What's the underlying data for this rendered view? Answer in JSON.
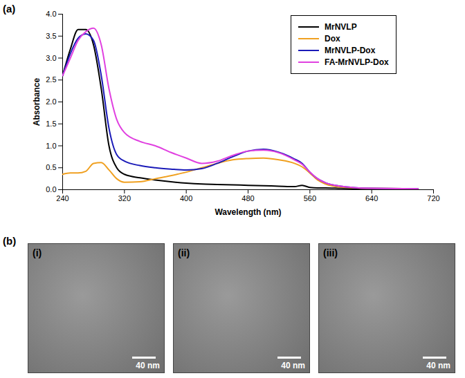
{
  "chart_data": {
    "type": "line",
    "annotations": [
      "(a)"
    ],
    "x_label": "Wavelength (nm)",
    "y_label": "Absorbance",
    "x": [
      240,
      250,
      260,
      270,
      280,
      290,
      300,
      310,
      320,
      340,
      360,
      380,
      400,
      420,
      440,
      460,
      480,
      500,
      520,
      540,
      550,
      560,
      570,
      580,
      600,
      640,
      700
    ],
    "series": [
      {
        "name": "MrNVLP",
        "color": "#000000",
        "values": [
          2.6,
          3.2,
          3.65,
          3.65,
          3.3,
          2.3,
          1.0,
          0.5,
          0.35,
          0.27,
          0.22,
          0.18,
          0.15,
          0.13,
          0.12,
          0.11,
          0.1,
          0.09,
          0.08,
          0.07,
          0.1,
          0.05,
          0.04,
          0.04,
          0.03,
          0.02,
          0.02
        ]
      },
      {
        "name": "Dox",
        "color": "#f0a020",
        "values": [
          0.35,
          0.38,
          0.38,
          0.42,
          0.6,
          0.62,
          0.45,
          0.25,
          0.17,
          0.18,
          0.25,
          0.32,
          0.4,
          0.5,
          0.6,
          0.68,
          0.71,
          0.72,
          0.68,
          0.6,
          0.52,
          0.38,
          0.22,
          0.13,
          0.06,
          0.03,
          0.02
        ]
      },
      {
        "name": "MrNVLP-Dox",
        "color": "#1a1ab8",
        "values": [
          2.6,
          3.1,
          3.45,
          3.55,
          3.4,
          2.6,
          1.4,
          0.8,
          0.65,
          0.55,
          0.5,
          0.47,
          0.45,
          0.48,
          0.6,
          0.75,
          0.88,
          0.92,
          0.85,
          0.7,
          0.6,
          0.4,
          0.25,
          0.16,
          0.08,
          0.03,
          0.02
        ]
      },
      {
        "name": "FA-MrNVLP-Dox",
        "color": "#e040e0",
        "values": [
          2.6,
          3.0,
          3.4,
          3.6,
          3.68,
          3.3,
          2.3,
          1.6,
          1.3,
          1.1,
          1.0,
          0.85,
          0.72,
          0.6,
          0.65,
          0.78,
          0.88,
          0.9,
          0.84,
          0.68,
          0.58,
          0.4,
          0.25,
          0.16,
          0.08,
          0.03,
          0.02
        ]
      }
    ],
    "xlim": [
      240,
      720
    ],
    "xticks": [
      240,
      320,
      400,
      480,
      560,
      640,
      720
    ],
    "ylim": [
      0,
      4
    ],
    "yticks": [
      0,
      0.5,
      1,
      1.5,
      2,
      2.5,
      3,
      3.5,
      4
    ],
    "grid": false,
    "legend": "top-right"
  },
  "images": {
    "label": "(b)",
    "panels": [
      {
        "label": "(i)",
        "scale_bar": "40 nm"
      },
      {
        "label": "(ii)",
        "scale_bar": "40 nm"
      },
      {
        "label": "(iii)",
        "scale_bar": "40 nm"
      }
    ]
  }
}
